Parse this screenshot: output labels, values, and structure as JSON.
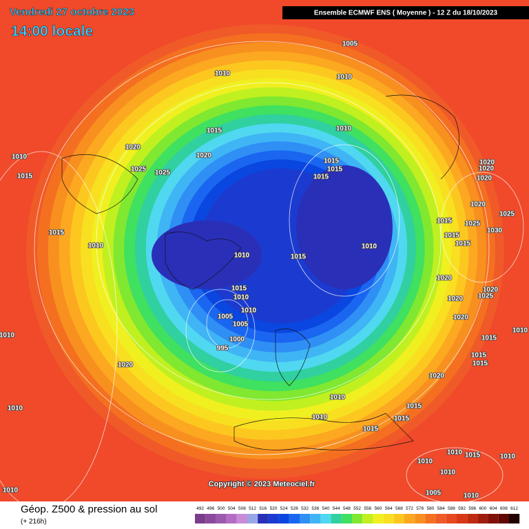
{
  "header": {
    "title": "Vendredi 27 octobre 2023",
    "subtitle": "14:00 locale",
    "model": "Ensemble ECMWF ENS  ( Moyenne )  -  12 Z du 18/10/2023"
  },
  "copyright": "Copyright © 2023 Meteociel.fr",
  "footer": {
    "field": "Géop. Z500 & pression au sol",
    "lead": "(+ 216h)"
  },
  "legend": {
    "levels": [
      "492",
      "496",
      "500",
      "504",
      "508",
      "512",
      "516",
      "520",
      "524",
      "528",
      "532",
      "536",
      "540",
      "544",
      "548",
      "552",
      "556",
      "560",
      "564",
      "568",
      "572",
      "576",
      "580",
      "584",
      "588",
      "592",
      "596",
      "600",
      "604",
      "608",
      "612"
    ],
    "colors": [
      "#7b3d8c",
      "#8b4a9c",
      "#9d59ae",
      "#b46dc3",
      "#c98bd6",
      "#9aa7e6",
      "#2a2fb8",
      "#1b3bd0",
      "#0a46e0",
      "#1a66f0",
      "#2f8ff5",
      "#3fb5f5",
      "#50d8f0",
      "#30d0a0",
      "#40e060",
      "#80e830",
      "#c0f020",
      "#f0f020",
      "#f8e020",
      "#fcc820",
      "#fca820",
      "#f89020",
      "#f47020",
      "#f05a28",
      "#e84820",
      "#d83818",
      "#c02a10",
      "#a01c0c",
      "#801008",
      "#600804",
      "#200000"
    ]
  },
  "isobar_labels": [
    "1005",
    "1010",
    "1010",
    "1015",
    "1010",
    "1020",
    "1020",
    "1025",
    "1025",
    "1015",
    "1015",
    "1015",
    "1010",
    "1015",
    "1015",
    "1010",
    "1010",
    "1015",
    "1010",
    "1015",
    "1010",
    "1010",
    "1005",
    "1005",
    "1000",
    "995",
    "1010",
    "1020",
    "1010",
    "1010",
    "1010",
    "1015",
    "1015",
    "1015",
    "1020",
    "1015",
    "1015",
    "1015",
    "1020",
    "1020",
    "1020",
    "1025",
    "1020",
    "1010",
    "1015",
    "1015",
    "1015",
    "1025",
    "1030",
    "1025",
    "1020",
    "1020",
    "1020",
    "1020",
    "1010",
    "1015",
    "1010",
    "1010",
    "1010",
    "1005",
    "1010",
    "1010"
  ]
}
